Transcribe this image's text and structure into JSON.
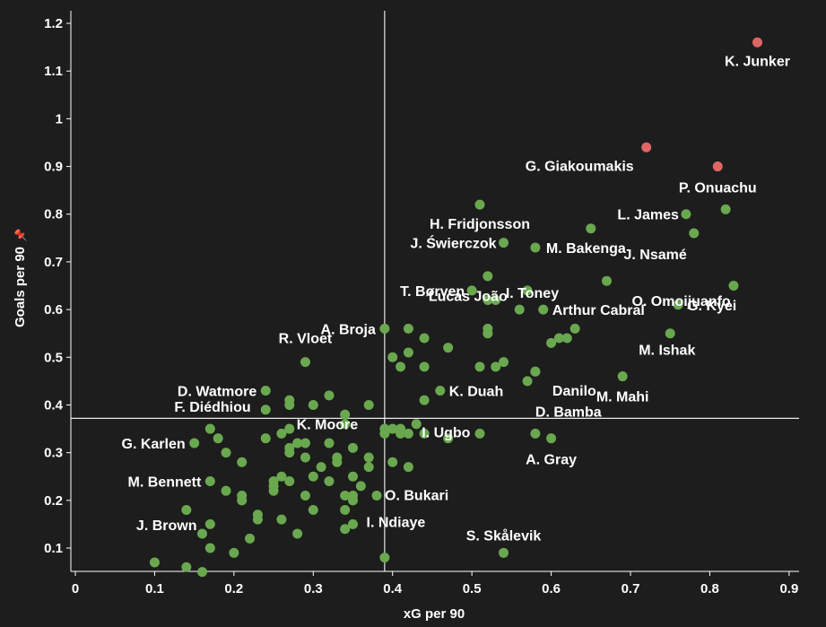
{
  "chart_data": {
    "type": "scatter",
    "xlabel": "xG per 90",
    "ylabel": "Goals per 90",
    "xlim": [
      0,
      0.9
    ],
    "ylim": [
      0.05,
      1.2
    ],
    "xticks": [
      0,
      0.1,
      0.2,
      0.3,
      0.4,
      0.5,
      0.6,
      0.7,
      0.8,
      0.9
    ],
    "xtick_labels": [
      "0",
      "0.1",
      "0.2",
      "0.3",
      "0.4",
      "0.5",
      "0.6",
      "0.7",
      "0.8",
      "0.9"
    ],
    "yticks": [
      0.1,
      0.2,
      0.3,
      0.4,
      0.5,
      0.6,
      0.7,
      0.8,
      0.9,
      1.0,
      1.1,
      1.2
    ],
    "ytick_labels": [
      "0.1",
      "0.2",
      "0.3",
      "0.4",
      "0.5",
      "0.6",
      "0.7",
      "0.8",
      "0.9",
      "1",
      "1.1",
      "1.2"
    ],
    "reference_lines": {
      "x": 0.39,
      "y": 0.372
    },
    "grid": false,
    "colors": {
      "background": "#1d1d1d",
      "highlight": "#e06666",
      "default": "#6aa84f",
      "text": "#ffffff"
    },
    "highlighted_points": [
      {
        "x": 0.86,
        "y": 1.16,
        "label": "K. Junker"
      },
      {
        "x": 0.72,
        "y": 0.94,
        "label": "G. Giakoumakis"
      },
      {
        "x": 0.81,
        "y": 0.9,
        "label": "P. Onuachu"
      }
    ],
    "labeled_points": [
      {
        "x": 0.51,
        "y": 0.82,
        "label": "H. Fridjonsson"
      },
      {
        "x": 0.54,
        "y": 0.74,
        "label": "J. Świerczok"
      },
      {
        "x": 0.58,
        "y": 0.73,
        "label": "M. Bakenga"
      },
      {
        "x": 0.77,
        "y": 0.8,
        "label": "L. James"
      },
      {
        "x": 0.82,
        "y": 0.81,
        "label": ""
      },
      {
        "x": 0.78,
        "y": 0.76,
        "label": "J. Nsamé"
      },
      {
        "x": 0.65,
        "y": 0.77,
        "label": ""
      },
      {
        "x": 0.52,
        "y": 0.67,
        "label": "I. Toney"
      },
      {
        "x": 0.67,
        "y": 0.66,
        "label": "O. Omoijuanfo"
      },
      {
        "x": 0.83,
        "y": 0.65,
        "label": ""
      },
      {
        "x": 0.5,
        "y": 0.64,
        "label": "T. Børven"
      },
      {
        "x": 0.76,
        "y": 0.61,
        "label": "G. Kyei"
      },
      {
        "x": 0.59,
        "y": 0.6,
        "label": "Arthur Cabral"
      },
      {
        "x": 0.39,
        "y": 0.56,
        "label": "A. Broja"
      },
      {
        "x": 0.75,
        "y": 0.55,
        "label": "M. Ishak"
      },
      {
        "x": 0.58,
        "y": 0.47,
        "label": "Danilo"
      },
      {
        "x": 0.69,
        "y": 0.46,
        "label": "M. Mahi"
      },
      {
        "x": 0.29,
        "y": 0.49,
        "label": "R. Vloet"
      },
      {
        "x": 0.24,
        "y": 0.43,
        "label": "D. Watmore"
      },
      {
        "x": 0.37,
        "y": 0.4,
        "label": "K. Moore"
      },
      {
        "x": 0.46,
        "y": 0.43,
        "label": "K. Duah"
      },
      {
        "x": 0.34,
        "y": 0.38,
        "label": "F. Diédhiou"
      },
      {
        "x": 0.43,
        "y": 0.36,
        "label": "I. Ugbo"
      },
      {
        "x": 0.58,
        "y": 0.34,
        "label": "D. Bamba"
      },
      {
        "x": 0.15,
        "y": 0.32,
        "label": "G. Karlen"
      },
      {
        "x": 0.6,
        "y": 0.33,
        "label": "A. Gray"
      },
      {
        "x": 0.17,
        "y": 0.24,
        "label": "M. Bennett"
      },
      {
        "x": 0.38,
        "y": 0.21,
        "label": "O. Bukari"
      },
      {
        "x": 0.35,
        "y": 0.15,
        "label": "I. Ndiaye"
      },
      {
        "x": 0.16,
        "y": 0.13,
        "label": "J. Brown"
      },
      {
        "x": 0.54,
        "y": 0.09,
        "label": "S. Skålevik"
      },
      {
        "x": 0.52,
        "y": 0.62,
        "label": "Lucas João"
      }
    ],
    "other_points": [
      [
        0.42,
        0.56
      ],
      [
        0.44,
        0.54
      ],
      [
        0.47,
        0.52
      ],
      [
        0.4,
        0.5
      ],
      [
        0.42,
        0.51
      ],
      [
        0.41,
        0.48
      ],
      [
        0.44,
        0.48
      ],
      [
        0.51,
        0.48
      ],
      [
        0.53,
        0.48
      ],
      [
        0.54,
        0.49
      ],
      [
        0.52,
        0.55
      ],
      [
        0.52,
        0.56
      ],
      [
        0.53,
        0.62
      ],
      [
        0.56,
        0.6
      ],
      [
        0.57,
        0.64
      ],
      [
        0.6,
        0.53
      ],
      [
        0.61,
        0.54
      ],
      [
        0.62,
        0.54
      ],
      [
        0.63,
        0.56
      ],
      [
        0.58,
        0.47
      ],
      [
        0.57,
        0.45
      ],
      [
        0.44,
        0.41
      ],
      [
        0.44,
        0.34
      ],
      [
        0.47,
        0.33
      ],
      [
        0.51,
        0.34
      ],
      [
        0.39,
        0.34
      ],
      [
        0.39,
        0.35
      ],
      [
        0.4,
        0.35
      ],
      [
        0.41,
        0.35
      ],
      [
        0.41,
        0.34
      ],
      [
        0.42,
        0.34
      ],
      [
        0.4,
        0.28
      ],
      [
        0.42,
        0.27
      ],
      [
        0.37,
        0.29
      ],
      [
        0.37,
        0.27
      ],
      [
        0.35,
        0.31
      ],
      [
        0.35,
        0.25
      ],
      [
        0.36,
        0.23
      ],
      [
        0.35,
        0.21
      ],
      [
        0.35,
        0.2
      ],
      [
        0.34,
        0.21
      ],
      [
        0.34,
        0.18
      ],
      [
        0.34,
        0.14
      ],
      [
        0.39,
        0.08
      ],
      [
        0.34,
        0.36
      ],
      [
        0.32,
        0.42
      ],
      [
        0.3,
        0.4
      ],
      [
        0.27,
        0.41
      ],
      [
        0.27,
        0.4
      ],
      [
        0.24,
        0.39
      ],
      [
        0.26,
        0.34
      ],
      [
        0.27,
        0.35
      ],
      [
        0.24,
        0.33
      ],
      [
        0.28,
        0.32
      ],
      [
        0.29,
        0.32
      ],
      [
        0.27,
        0.31
      ],
      [
        0.27,
        0.3
      ],
      [
        0.29,
        0.29
      ],
      [
        0.32,
        0.32
      ],
      [
        0.33,
        0.29
      ],
      [
        0.31,
        0.27
      ],
      [
        0.3,
        0.25
      ],
      [
        0.26,
        0.25
      ],
      [
        0.25,
        0.24
      ],
      [
        0.25,
        0.23
      ],
      [
        0.25,
        0.22
      ],
      [
        0.27,
        0.24
      ],
      [
        0.29,
        0.21
      ],
      [
        0.3,
        0.18
      ],
      [
        0.26,
        0.16
      ],
      [
        0.23,
        0.17
      ],
      [
        0.23,
        0.16
      ],
      [
        0.21,
        0.21
      ],
      [
        0.21,
        0.2
      ],
      [
        0.19,
        0.22
      ],
      [
        0.21,
        0.28
      ],
      [
        0.19,
        0.3
      ],
      [
        0.18,
        0.33
      ],
      [
        0.17,
        0.35
      ],
      [
        0.14,
        0.18
      ],
      [
        0.17,
        0.15
      ],
      [
        0.17,
        0.1
      ],
      [
        0.2,
        0.09
      ],
      [
        0.22,
        0.12
      ],
      [
        0.28,
        0.13
      ],
      [
        0.1,
        0.07
      ],
      [
        0.14,
        0.06
      ],
      [
        0.16,
        0.05
      ],
      [
        0.32,
        0.24
      ],
      [
        0.33,
        0.28
      ]
    ]
  }
}
